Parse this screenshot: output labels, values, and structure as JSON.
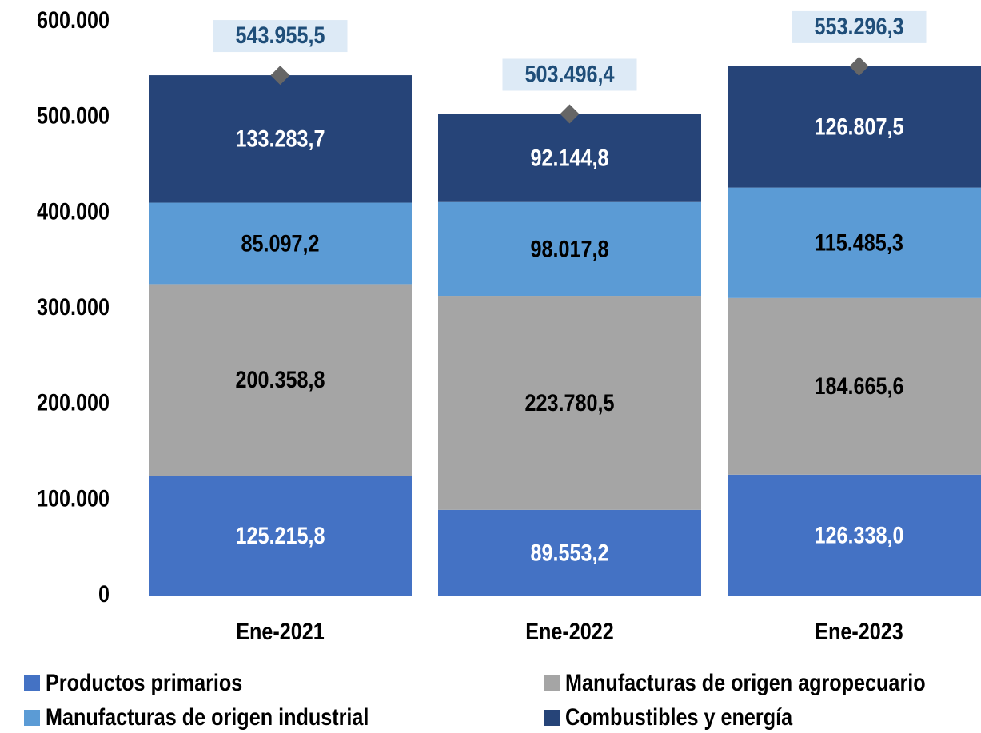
{
  "chart_data": {
    "type": "stacked_bar",
    "categories": [
      "Ene-2021",
      "Ene-2022",
      "Ene-2023"
    ],
    "series": [
      {
        "name": "Productos primarios",
        "color": "#4472c4",
        "values": [
          125215.8,
          89553.2,
          126338.0
        ],
        "value_labels": [
          "125.215,8",
          "89.553,2",
          "126.338,0"
        ]
      },
      {
        "name": "Manufacturas de origen agropecuario",
        "color": "#a5a5a5",
        "values": [
          200358.8,
          223780.5,
          184665.6
        ],
        "value_labels": [
          "200.358,8",
          "223.780,5",
          "184.665,6"
        ]
      },
      {
        "name": "Manufacturas de origen industrial",
        "color": "#5b9bd5",
        "values": [
          85097.2,
          98017.8,
          115485.3
        ],
        "value_labels": [
          "85.097,2",
          "98.017,8",
          "115.485,3"
        ]
      },
      {
        "name": "Combustibles y energía",
        "color": "#264478",
        "values": [
          133283.7,
          92144.8,
          126807.5
        ],
        "value_labels": [
          "133.283,7",
          "92.144,8",
          "126.807,5"
        ]
      }
    ],
    "totals": {
      "color": "#666666",
      "values": [
        543955.5,
        503496.4,
        553296.3
      ],
      "value_labels": [
        "543.955,5",
        "503.496,4",
        "553.296,3"
      ]
    },
    "ylim": [
      0,
      600000
    ],
    "yticks": [
      0,
      {
        "value": 100000,
        "label": "100.000"
      },
      {
        "value": 200000,
        "label": "200.000"
      },
      {
        "value": 300000,
        "label": "300.000"
      },
      {
        "value": 400000,
        "label": "400.000"
      },
      {
        "value": 500000,
        "label": "500.000"
      },
      {
        "value": 600000,
        "label": "600.000"
      }
    ],
    "legend": "bottom"
  }
}
